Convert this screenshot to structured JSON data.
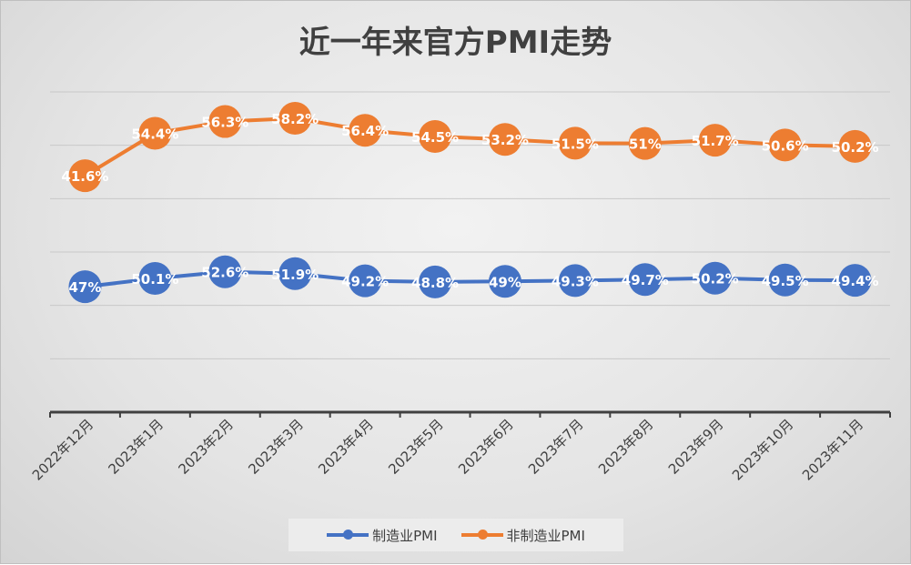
{
  "chart_data": {
    "type": "line",
    "stacked": true,
    "title": "近一年来官方PMI走势",
    "categories": [
      "2022年12月",
      "2023年1月",
      "2023年2月",
      "2023年3月",
      "2023年4月",
      "2023年5月",
      "2023年6月",
      "2023年7月",
      "2023年8月",
      "2023年9月",
      "2023年10月",
      "2023年11月"
    ],
    "series": [
      {
        "name": "制造业PMI",
        "color": "#4472c4",
        "values": [
          47,
          50.1,
          52.6,
          51.9,
          49.2,
          48.8,
          49,
          49.3,
          49.7,
          50.2,
          49.5,
          49.4
        ],
        "labels": [
          "47%",
          "50.1%",
          "52.6%",
          "51.9%",
          "49.2%",
          "48.8%",
          "49%",
          "49.3%",
          "49.7%",
          "50.2%",
          "49.5%",
          "49.4%"
        ]
      },
      {
        "name": "非制造业PMI",
        "color": "#ed7d31",
        "values": [
          41.6,
          54.4,
          56.3,
          58.2,
          56.4,
          54.5,
          53.2,
          51.5,
          51,
          51.7,
          50.6,
          50.2
        ],
        "labels": [
          "41.6%",
          "54.4%",
          "56.3%",
          "58.2%",
          "56.4%",
          "54.5%",
          "53.2%",
          "51.5%",
          "51%",
          "51.7%",
          "50.6%",
          "50.2%"
        ]
      }
    ],
    "ylim": [
      0,
      120
    ],
    "ytick_step": 20,
    "y_tick_labels_shown": false,
    "grid": true,
    "legend": "bottom"
  }
}
